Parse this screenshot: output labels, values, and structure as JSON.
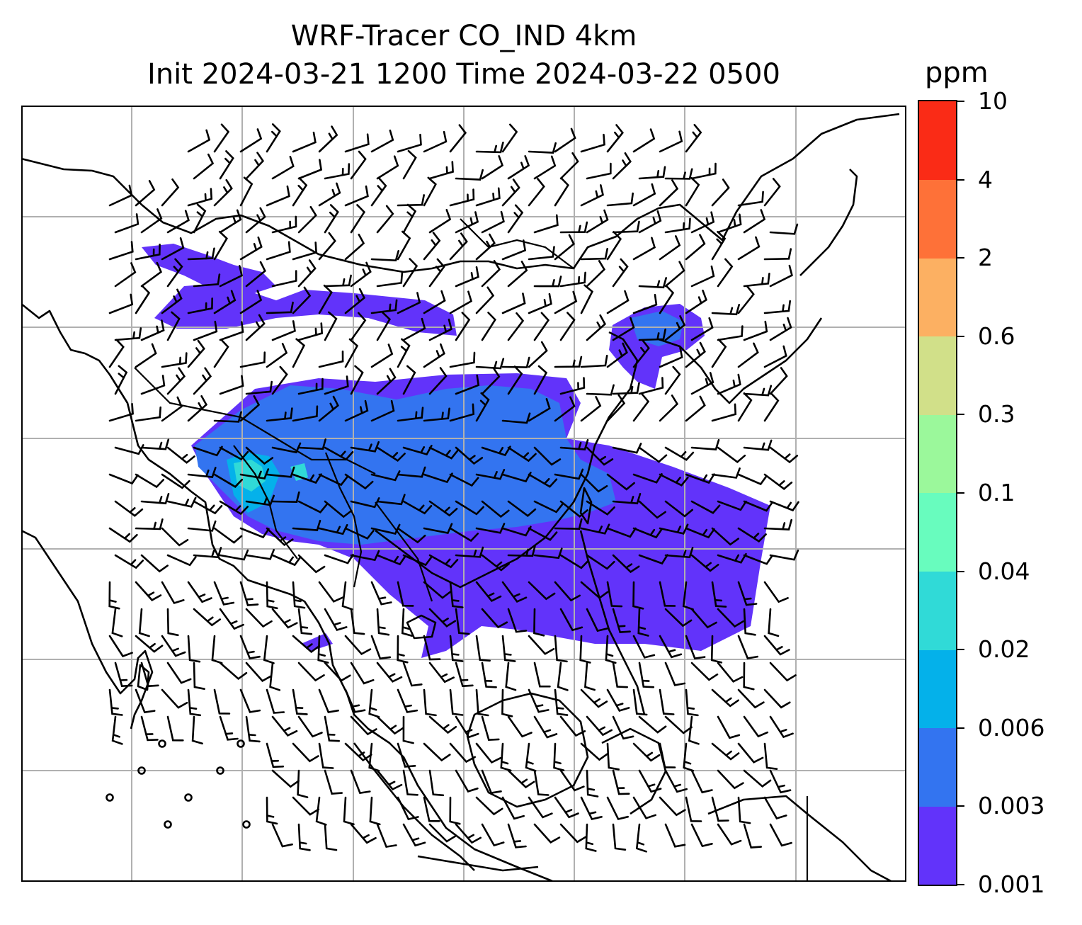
{
  "title": {
    "line1": "WRF-Tracer CO_IND 4km",
    "line2": "Init 2024-03-21 1200 Time 2024-03-22 0500"
  },
  "colorbar": {
    "unit": "ppm",
    "ticks": [
      "0.001",
      "0.003",
      "0.006",
      "0.02",
      "0.04",
      "0.1",
      "0.3",
      "0.6",
      "2",
      "4",
      "10"
    ],
    "colors": [
      "#6233fa",
      "#3374f0",
      "#04b1ea",
      "#30dad7",
      "#68fcbe",
      "#9bf89b",
      "#d1e089",
      "#fcb062",
      "#fe7138",
      "#fa2b16"
    ]
  },
  "map": {
    "layers": [
      "coastlines",
      "country-borders",
      "gridlines",
      "tracer-concentration",
      "wind-barbs"
    ],
    "line_color": "#000000",
    "grid_color": "#b0b0b0"
  }
}
